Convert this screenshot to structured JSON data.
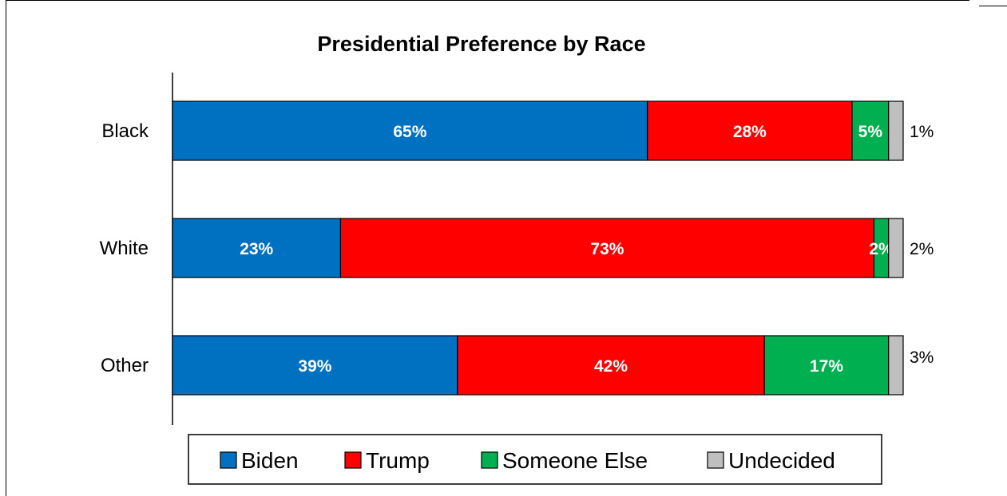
{
  "chart_data": {
    "type": "bar",
    "orientation": "horizontal",
    "stacked": true,
    "title": "Presidential Preference by Race",
    "categories": [
      "Black",
      "White",
      "Other"
    ],
    "series": [
      {
        "name": "Biden",
        "color": "#0070C0",
        "values": [
          65,
          23,
          39
        ],
        "labels": [
          "65%",
          "23%",
          "39%"
        ]
      },
      {
        "name": "Trump",
        "color": "#FF0000",
        "values": [
          28,
          73,
          42
        ],
        "labels": [
          "28%",
          "73%",
          "42%"
        ]
      },
      {
        "name": "Someone Else",
        "color": "#00B050",
        "values": [
          5,
          2,
          17
        ],
        "labels": [
          "5%",
          "2%",
          "17%"
        ]
      },
      {
        "name": "Undecided",
        "color": "#BFBFBF",
        "values": [
          1,
          2,
          3
        ],
        "labels": [
          "1%",
          "2%",
          "3%"
        ]
      }
    ],
    "xlim": [
      0,
      100
    ],
    "legend_position": "bottom",
    "grid": false
  }
}
